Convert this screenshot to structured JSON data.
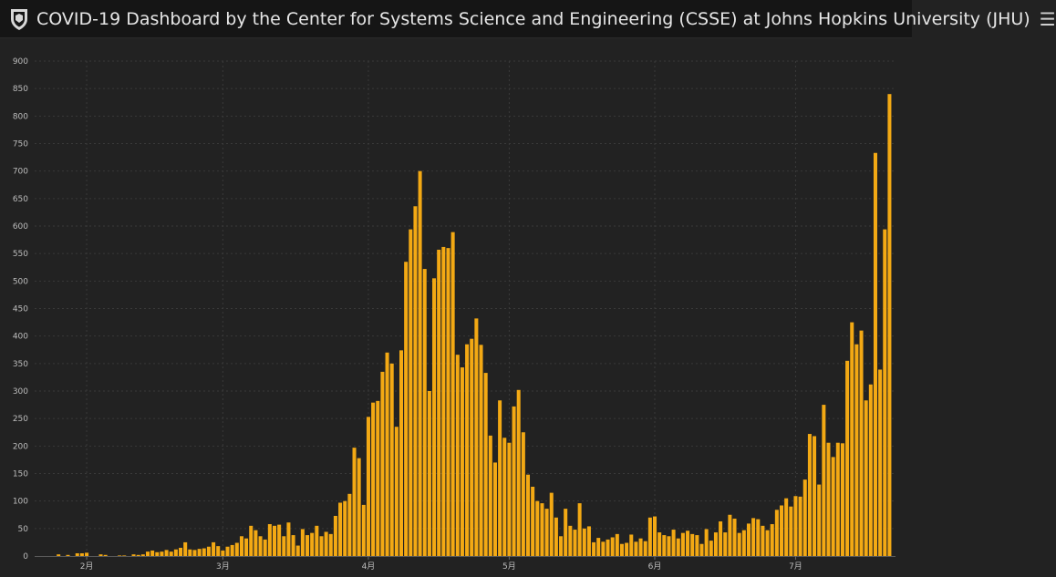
{
  "header": {
    "title": "COVID-19 Dashboard by the Center for Systems Science and Engineering (CSSE) at Johns Hopkins University (JHU)",
    "logo_icon": "university-shield-icon",
    "menu_icon": "hamburger-menu-icon"
  },
  "colors": {
    "bar": "#f3a914",
    "background": "#222222",
    "grid": "#3a3a3a"
  },
  "chart_data": {
    "type": "bar",
    "title": "",
    "xlabel": "",
    "ylabel": "",
    "ylim": [
      0,
      900
    ],
    "yticks": [
      0,
      50,
      100,
      150,
      200,
      250,
      300,
      350,
      400,
      450,
      500,
      550,
      600,
      650,
      700,
      750,
      800,
      850,
      900
    ],
    "grid": true,
    "xtick_labels": [
      {
        "index": 10,
        "label": "2月"
      },
      {
        "index": 39,
        "label": "3月"
      },
      {
        "index": 70,
        "label": "4月"
      },
      {
        "index": 100,
        "label": "5月"
      },
      {
        "index": 131,
        "label": "6月"
      },
      {
        "index": 161,
        "label": "7月"
      }
    ],
    "series": [
      {
        "values": [
          0,
          0,
          0,
          0,
          3,
          0,
          2,
          0,
          5,
          5,
          6,
          0,
          0,
          3,
          2,
          0,
          0,
          1,
          1,
          0,
          3,
          2,
          3,
          8,
          10,
          7,
          8,
          11,
          8,
          12,
          15,
          25,
          12,
          11,
          13,
          14,
          17,
          25,
          18,
          10,
          17,
          20,
          24,
          36,
          32,
          55,
          47,
          36,
          30,
          58,
          55,
          57,
          36,
          61,
          38,
          19,
          49,
          38,
          42,
          55,
          36,
          44,
          40,
          73,
          97,
          100,
          113,
          197,
          178,
          93,
          253,
          279,
          282,
          335,
          370,
          350,
          235,
          374,
          535,
          594,
          636,
          700,
          522,
          300,
          505,
          557,
          562,
          560,
          589,
          366,
          343,
          385,
          395,
          432,
          384,
          333,
          219,
          170,
          283,
          215,
          206,
          272,
          302,
          225,
          148,
          126,
          100,
          96,
          86,
          115,
          70,
          36,
          86,
          55,
          48,
          96,
          50,
          54,
          25,
          33,
          26,
          30,
          34,
          40,
          22,
          24,
          39,
          26,
          32,
          27,
          70,
          72,
          43,
          38,
          36,
          48,
          32,
          42,
          46,
          40,
          38,
          22,
          49,
          28,
          43,
          63,
          43,
          75,
          68,
          42,
          47,
          59,
          69,
          67,
          55,
          47,
          58,
          84,
          92,
          105,
          90,
          109,
          108,
          139,
          222,
          218,
          130,
          275,
          206,
          180,
          206,
          205,
          355,
          425,
          385,
          410,
          283,
          312,
          733,
          339,
          594,
          840
        ]
      }
    ]
  }
}
